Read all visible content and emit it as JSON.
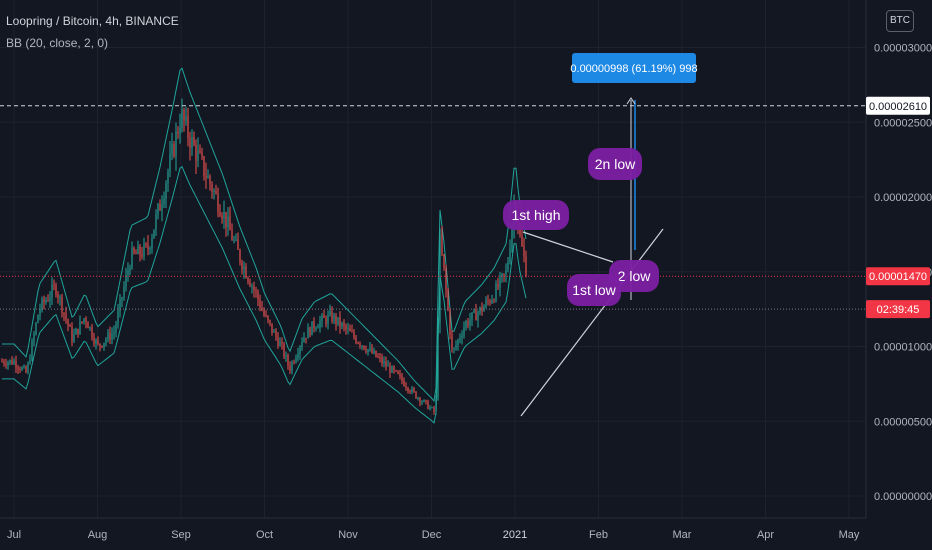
{
  "header": {
    "symbol_line": "Loopring / Bitcoin, 4h, BINANCE",
    "indicator_line": "BB (20, close, 2, 0)",
    "currency_badge": "BTC"
  },
  "colors": {
    "background": "#131722",
    "grid": "#1e222d",
    "up_candle": "#26a69a",
    "down_candle": "#ef5350",
    "bb_band": "#1fa59a",
    "annotation_purple": "#7b1fa2",
    "measure_blue": "#1e88e5",
    "price_tag_red": "#f23645"
  },
  "chart_data": {
    "type": "candlestick",
    "x_ticks": [
      "Jul",
      "Aug",
      "Sep",
      "Oct",
      "Nov",
      "Dec",
      "2021",
      "Feb",
      "Mar",
      "Apr",
      "May"
    ],
    "y_ticks": [
      "0.00003000",
      "0.00002500",
      "0.00002000",
      "0.00001500",
      "0.00001000",
      "0.00000500",
      "0.00000000"
    ],
    "ylim": [
      0,
      3.1e-05
    ],
    "price_path": [
      {
        "t": 0.0,
        "v": 9e-06
      },
      {
        "t": 0.15,
        "v": 8.2e-06
      },
      {
        "t": 0.3,
        "v": 1.25e-05
      },
      {
        "t": 0.5,
        "v": 1.4e-05
      },
      {
        "t": 0.7,
        "v": 1.05e-05
      },
      {
        "t": 0.85,
        "v": 1.2e-05
      },
      {
        "t": 1.0,
        "v": 1e-05
      },
      {
        "t": 1.2,
        "v": 1.1e-05
      },
      {
        "t": 1.4,
        "v": 1.6e-05
      },
      {
        "t": 1.6,
        "v": 1.65e-05
      },
      {
        "t": 1.75,
        "v": 1.95e-05
      },
      {
        "t": 1.9,
        "v": 2.3e-05
      },
      {
        "t": 2.0,
        "v": 2.55e-05
      },
      {
        "t": 2.1,
        "v": 2.4e-05
      },
      {
        "t": 2.3,
        "v": 2.15e-05
      },
      {
        "t": 2.5,
        "v": 1.9e-05
      },
      {
        "t": 2.7,
        "v": 1.6e-05
      },
      {
        "t": 2.9,
        "v": 1.35e-05
      },
      {
        "t": 3.0,
        "v": 1.2e-05
      },
      {
        "t": 3.2,
        "v": 1e-05
      },
      {
        "t": 3.3,
        "v": 8.5e-06
      },
      {
        "t": 3.45,
        "v": 1.05e-05
      },
      {
        "t": 3.6,
        "v": 1.15e-05
      },
      {
        "t": 3.8,
        "v": 1.2e-05
      },
      {
        "t": 4.0,
        "v": 1.1e-05
      },
      {
        "t": 4.2,
        "v": 1e-05
      },
      {
        "t": 4.4,
        "v": 9e-06
      },
      {
        "t": 4.6,
        "v": 8e-06
      },
      {
        "t": 4.8,
        "v": 6.8e-06
      },
      {
        "t": 5.0,
        "v": 5.8e-06
      },
      {
        "t": 5.05,
        "v": 5.5e-06
      },
      {
        "t": 5.1,
        "v": 1.7e-05
      },
      {
        "t": 5.15,
        "v": 1.5e-05
      },
      {
        "t": 5.25,
        "v": 9.5e-06
      },
      {
        "t": 5.4,
        "v": 1.15e-05
      },
      {
        "t": 5.6,
        "v": 1.25e-05
      },
      {
        "t": 5.75,
        "v": 1.35e-05
      },
      {
        "t": 5.9,
        "v": 1.5e-05
      },
      {
        "t": 6.0,
        "v": 2e-05
      },
      {
        "t": 6.05,
        "v": 1.75e-05
      },
      {
        "t": 6.15,
        "v": 1.47e-05
      }
    ],
    "price_lines": [
      {
        "value": 2.61e-05,
        "label": "0.00002610",
        "style": "dashed-white"
      },
      {
        "value": 1.47e-05,
        "label": "0.00001470",
        "style": "dotted-red"
      },
      {
        "value": 1.25e-05,
        "label": "02:39:45",
        "style": "dotted-gray"
      }
    ],
    "annotations": [
      {
        "text": "1st high",
        "type": "label"
      },
      {
        "text": "2n low",
        "type": "label"
      },
      {
        "text": "2 low",
        "type": "label"
      },
      {
        "text": "1st low",
        "type": "label"
      }
    ],
    "measure": {
      "text": "0.00000998 (61.19%) 998"
    }
  }
}
